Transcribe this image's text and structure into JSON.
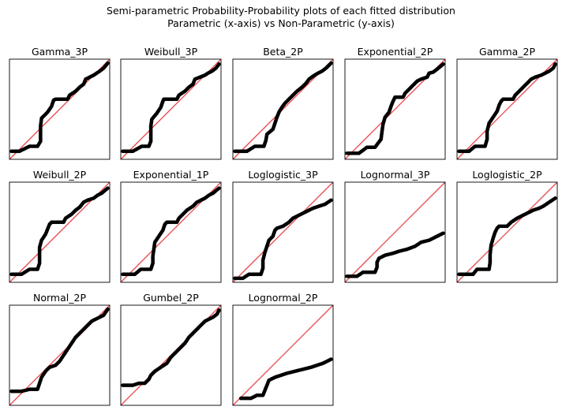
{
  "figure": {
    "title_line1": "Semi-parametric Probability-Probability plots of each fitted distribution",
    "title_line2": "Parametric (x-axis) vs Non-Parametric (y-axis)",
    "reference_line_color": "#e8464a",
    "point_color": "#000000"
  },
  "chart_data": [
    {
      "type": "scatter",
      "title": "Gamma_3P",
      "xlim": [
        0,
        1
      ],
      "ylim": [
        0,
        1
      ],
      "points": [
        [
          0.02,
          0.08
        ],
        [
          0.1,
          0.08
        ],
        [
          0.2,
          0.13
        ],
        [
          0.28,
          0.13
        ],
        [
          0.31,
          0.18
        ],
        [
          0.31,
          0.25
        ],
        [
          0.31,
          0.33
        ],
        [
          0.32,
          0.41
        ],
        [
          0.38,
          0.47
        ],
        [
          0.42,
          0.53
        ],
        [
          0.44,
          0.59
        ],
        [
          0.46,
          0.6
        ],
        [
          0.58,
          0.6
        ],
        [
          0.6,
          0.64
        ],
        [
          0.66,
          0.68
        ],
        [
          0.7,
          0.72
        ],
        [
          0.74,
          0.75
        ],
        [
          0.76,
          0.8
        ],
        [
          0.8,
          0.82
        ],
        [
          0.84,
          0.84
        ],
        [
          0.87,
          0.86
        ],
        [
          0.9,
          0.88
        ],
        [
          0.94,
          0.91
        ],
        [
          0.98,
          0.96
        ]
      ]
    },
    {
      "type": "scatter",
      "title": "Weibull_3P",
      "xlim": [
        0,
        1
      ],
      "ylim": [
        0,
        1
      ],
      "points": [
        [
          0.02,
          0.08
        ],
        [
          0.12,
          0.08
        ],
        [
          0.21,
          0.13
        ],
        [
          0.28,
          0.13
        ],
        [
          0.3,
          0.18
        ],
        [
          0.3,
          0.25
        ],
        [
          0.3,
          0.33
        ],
        [
          0.31,
          0.4
        ],
        [
          0.36,
          0.46
        ],
        [
          0.4,
          0.52
        ],
        [
          0.42,
          0.58
        ],
        [
          0.43,
          0.6
        ],
        [
          0.56,
          0.6
        ],
        [
          0.58,
          0.64
        ],
        [
          0.64,
          0.68
        ],
        [
          0.68,
          0.72
        ],
        [
          0.72,
          0.75
        ],
        [
          0.74,
          0.8
        ],
        [
          0.79,
          0.82
        ],
        [
          0.84,
          0.84
        ],
        [
          0.87,
          0.86
        ],
        [
          0.91,
          0.88
        ],
        [
          0.95,
          0.91
        ],
        [
          0.98,
          0.95
        ]
      ]
    },
    {
      "type": "scatter",
      "title": "Beta_2P",
      "xlim": [
        0,
        1
      ],
      "ylim": [
        0,
        1
      ],
      "points": [
        [
          0.02,
          0.08
        ],
        [
          0.14,
          0.08
        ],
        [
          0.22,
          0.13
        ],
        [
          0.31,
          0.13
        ],
        [
          0.33,
          0.19
        ],
        [
          0.34,
          0.25
        ],
        [
          0.4,
          0.3
        ],
        [
          0.42,
          0.36
        ],
        [
          0.44,
          0.42
        ],
        [
          0.46,
          0.47
        ],
        [
          0.49,
          0.52
        ],
        [
          0.52,
          0.56
        ],
        [
          0.56,
          0.6
        ],
        [
          0.6,
          0.64
        ],
        [
          0.64,
          0.68
        ],
        [
          0.69,
          0.72
        ],
        [
          0.73,
          0.76
        ],
        [
          0.76,
          0.8
        ],
        [
          0.8,
          0.83
        ],
        [
          0.85,
          0.86
        ],
        [
          0.89,
          0.88
        ],
        [
          0.93,
          0.91
        ],
        [
          0.98,
          0.96
        ]
      ]
    },
    {
      "type": "scatter",
      "title": "Exponential_2P",
      "xlim": [
        0,
        1
      ],
      "ylim": [
        0,
        1
      ],
      "points": [
        [
          0.02,
          0.06
        ],
        [
          0.14,
          0.06
        ],
        [
          0.22,
          0.12
        ],
        [
          0.3,
          0.12
        ],
        [
          0.36,
          0.2
        ],
        [
          0.37,
          0.28
        ],
        [
          0.38,
          0.35
        ],
        [
          0.4,
          0.42
        ],
        [
          0.44,
          0.47
        ],
        [
          0.46,
          0.53
        ],
        [
          0.48,
          0.58
        ],
        [
          0.5,
          0.62
        ],
        [
          0.58,
          0.62
        ],
        [
          0.6,
          0.66
        ],
        [
          0.64,
          0.7
        ],
        [
          0.68,
          0.74
        ],
        [
          0.72,
          0.78
        ],
        [
          0.76,
          0.8
        ],
        [
          0.82,
          0.82
        ],
        [
          0.84,
          0.86
        ],
        [
          0.88,
          0.87
        ],
        [
          0.92,
          0.9
        ],
        [
          0.98,
          0.95
        ]
      ]
    },
    {
      "type": "scatter",
      "title": "Gamma_2P",
      "xlim": [
        0,
        1
      ],
      "ylim": [
        0,
        1
      ],
      "points": [
        [
          0.02,
          0.08
        ],
        [
          0.12,
          0.08
        ],
        [
          0.18,
          0.13
        ],
        [
          0.28,
          0.13
        ],
        [
          0.3,
          0.2
        ],
        [
          0.3,
          0.28
        ],
        [
          0.32,
          0.36
        ],
        [
          0.36,
          0.42
        ],
        [
          0.4,
          0.48
        ],
        [
          0.42,
          0.54
        ],
        [
          0.44,
          0.58
        ],
        [
          0.46,
          0.6
        ],
        [
          0.56,
          0.6
        ],
        [
          0.58,
          0.64
        ],
        [
          0.62,
          0.68
        ],
        [
          0.66,
          0.72
        ],
        [
          0.7,
          0.76
        ],
        [
          0.74,
          0.8
        ],
        [
          0.78,
          0.82
        ],
        [
          0.84,
          0.84
        ],
        [
          0.88,
          0.86
        ],
        [
          0.92,
          0.88
        ],
        [
          0.96,
          0.91
        ],
        [
          0.98,
          0.95
        ]
      ]
    },
    {
      "type": "scatter",
      "title": "Weibull_2P",
      "xlim": [
        0,
        1
      ],
      "ylim": [
        0,
        1
      ],
      "points": [
        [
          0.02,
          0.08
        ],
        [
          0.12,
          0.08
        ],
        [
          0.2,
          0.13
        ],
        [
          0.28,
          0.13
        ],
        [
          0.3,
          0.19
        ],
        [
          0.3,
          0.27
        ],
        [
          0.3,
          0.35
        ],
        [
          0.32,
          0.42
        ],
        [
          0.36,
          0.48
        ],
        [
          0.38,
          0.53
        ],
        [
          0.4,
          0.58
        ],
        [
          0.42,
          0.6
        ],
        [
          0.54,
          0.6
        ],
        [
          0.56,
          0.64
        ],
        [
          0.62,
          0.68
        ],
        [
          0.66,
          0.72
        ],
        [
          0.7,
          0.75
        ],
        [
          0.74,
          0.8
        ],
        [
          0.78,
          0.82
        ],
        [
          0.84,
          0.84
        ],
        [
          0.88,
          0.87
        ],
        [
          0.92,
          0.89
        ],
        [
          0.98,
          0.94
        ]
      ]
    },
    {
      "type": "scatter",
      "title": "Exponential_1P",
      "xlim": [
        0,
        1
      ],
      "ylim": [
        0,
        1
      ],
      "points": [
        [
          0.02,
          0.08
        ],
        [
          0.14,
          0.08
        ],
        [
          0.2,
          0.13
        ],
        [
          0.3,
          0.13
        ],
        [
          0.32,
          0.19
        ],
        [
          0.32,
          0.26
        ],
        [
          0.33,
          0.33
        ],
        [
          0.34,
          0.4
        ],
        [
          0.38,
          0.46
        ],
        [
          0.42,
          0.52
        ],
        [
          0.44,
          0.58
        ],
        [
          0.46,
          0.6
        ],
        [
          0.56,
          0.6
        ],
        [
          0.58,
          0.64
        ],
        [
          0.62,
          0.68
        ],
        [
          0.66,
          0.72
        ],
        [
          0.72,
          0.76
        ],
        [
          0.76,
          0.8
        ],
        [
          0.8,
          0.82
        ],
        [
          0.84,
          0.84
        ],
        [
          0.88,
          0.87
        ],
        [
          0.92,
          0.89
        ],
        [
          0.98,
          0.94
        ]
      ]
    },
    {
      "type": "scatter",
      "title": "Loglogistic_3P",
      "xlim": [
        0,
        1
      ],
      "ylim": [
        0,
        1
      ],
      "points": [
        [
          0.02,
          0.04
        ],
        [
          0.1,
          0.04
        ],
        [
          0.16,
          0.08
        ],
        [
          0.28,
          0.08
        ],
        [
          0.3,
          0.14
        ],
        [
          0.3,
          0.22
        ],
        [
          0.32,
          0.3
        ],
        [
          0.34,
          0.36
        ],
        [
          0.36,
          0.42
        ],
        [
          0.4,
          0.46
        ],
        [
          0.42,
          0.52
        ],
        [
          0.44,
          0.54
        ],
        [
          0.5,
          0.56
        ],
        [
          0.56,
          0.6
        ],
        [
          0.6,
          0.64
        ],
        [
          0.64,
          0.66
        ],
        [
          0.68,
          0.68
        ],
        [
          0.72,
          0.7
        ],
        [
          0.76,
          0.72
        ],
        [
          0.8,
          0.74
        ],
        [
          0.86,
          0.76
        ],
        [
          0.92,
          0.78
        ],
        [
          0.98,
          0.82
        ]
      ]
    },
    {
      "type": "scatter",
      "title": "Lognormal_3P",
      "xlim": [
        0,
        1
      ],
      "ylim": [
        0,
        1
      ],
      "points": [
        [
          0.02,
          0.06
        ],
        [
          0.12,
          0.06
        ],
        [
          0.18,
          0.1
        ],
        [
          0.3,
          0.1
        ],
        [
          0.32,
          0.15
        ],
        [
          0.32,
          0.2
        ],
        [
          0.34,
          0.24
        ],
        [
          0.4,
          0.27
        ],
        [
          0.48,
          0.29
        ],
        [
          0.54,
          0.31
        ],
        [
          0.62,
          0.33
        ],
        [
          0.7,
          0.36
        ],
        [
          0.76,
          0.4
        ],
        [
          0.84,
          0.42
        ],
        [
          0.9,
          0.45
        ],
        [
          0.98,
          0.49
        ]
      ]
    },
    {
      "type": "scatter",
      "title": "Loglogistic_2P",
      "xlim": [
        0,
        1
      ],
      "ylim": [
        0,
        1
      ],
      "points": [
        [
          0.02,
          0.08
        ],
        [
          0.16,
          0.08
        ],
        [
          0.2,
          0.13
        ],
        [
          0.32,
          0.13
        ],
        [
          0.33,
          0.2
        ],
        [
          0.33,
          0.28
        ],
        [
          0.34,
          0.37
        ],
        [
          0.36,
          0.44
        ],
        [
          0.38,
          0.5
        ],
        [
          0.4,
          0.54
        ],
        [
          0.42,
          0.56
        ],
        [
          0.5,
          0.56
        ],
        [
          0.54,
          0.6
        ],
        [
          0.6,
          0.64
        ],
        [
          0.64,
          0.66
        ],
        [
          0.68,
          0.68
        ],
        [
          0.72,
          0.7
        ],
        [
          0.76,
          0.72
        ],
        [
          0.82,
          0.74
        ],
        [
          0.86,
          0.76
        ],
        [
          0.92,
          0.8
        ],
        [
          0.98,
          0.84
        ]
      ]
    },
    {
      "type": "scatter",
      "title": "Normal_2P",
      "xlim": [
        0,
        1
      ],
      "ylim": [
        0,
        1
      ],
      "points": [
        [
          0.02,
          0.14
        ],
        [
          0.12,
          0.14
        ],
        [
          0.2,
          0.16
        ],
        [
          0.28,
          0.16
        ],
        [
          0.3,
          0.22
        ],
        [
          0.32,
          0.28
        ],
        [
          0.36,
          0.34
        ],
        [
          0.4,
          0.38
        ],
        [
          0.46,
          0.4
        ],
        [
          0.5,
          0.44
        ],
        [
          0.54,
          0.5
        ],
        [
          0.58,
          0.56
        ],
        [
          0.62,
          0.62
        ],
        [
          0.66,
          0.68
        ],
        [
          0.7,
          0.72
        ],
        [
          0.74,
          0.76
        ],
        [
          0.78,
          0.8
        ],
        [
          0.82,
          0.84
        ],
        [
          0.86,
          0.86
        ],
        [
          0.9,
          0.88
        ],
        [
          0.94,
          0.9
        ],
        [
          0.98,
          0.96
        ]
      ]
    },
    {
      "type": "scatter",
      "title": "Gumbel_2P",
      "xlim": [
        0,
        1
      ],
      "ylim": [
        0,
        1
      ],
      "points": [
        [
          0.02,
          0.2
        ],
        [
          0.12,
          0.2
        ],
        [
          0.18,
          0.22
        ],
        [
          0.24,
          0.22
        ],
        [
          0.28,
          0.26
        ],
        [
          0.3,
          0.3
        ],
        [
          0.34,
          0.34
        ],
        [
          0.4,
          0.38
        ],
        [
          0.46,
          0.42
        ],
        [
          0.5,
          0.48
        ],
        [
          0.56,
          0.54
        ],
        [
          0.6,
          0.58
        ],
        [
          0.64,
          0.62
        ],
        [
          0.68,
          0.68
        ],
        [
          0.72,
          0.72
        ],
        [
          0.76,
          0.76
        ],
        [
          0.8,
          0.8
        ],
        [
          0.84,
          0.84
        ],
        [
          0.88,
          0.86
        ],
        [
          0.92,
          0.88
        ],
        [
          0.96,
          0.91
        ],
        [
          0.98,
          0.95
        ]
      ]
    },
    {
      "type": "scatter",
      "title": "Lognormal_2P",
      "xlim": [
        0,
        1
      ],
      "ylim": [
        0,
        1
      ],
      "points": [
        [
          0.08,
          0.07
        ],
        [
          0.18,
          0.07
        ],
        [
          0.24,
          0.1
        ],
        [
          0.3,
          0.1
        ],
        [
          0.32,
          0.15
        ],
        [
          0.34,
          0.2
        ],
        [
          0.36,
          0.25
        ],
        [
          0.42,
          0.28
        ],
        [
          0.48,
          0.3
        ],
        [
          0.54,
          0.32
        ],
        [
          0.62,
          0.34
        ],
        [
          0.7,
          0.36
        ],
        [
          0.78,
          0.38
        ],
        [
          0.84,
          0.4
        ],
        [
          0.9,
          0.42
        ],
        [
          0.98,
          0.46
        ]
      ]
    }
  ]
}
